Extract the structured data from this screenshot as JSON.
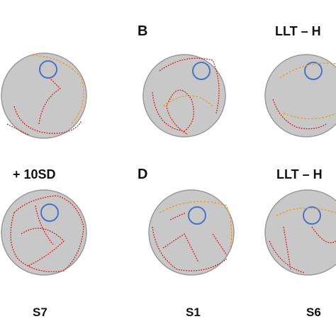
{
  "panels": [
    {
      "letter": "B",
      "label": "LLT – H"
    },
    {
      "label": "+ 10SD"
    },
    {
      "letter": "D",
      "label": "LLT – H"
    }
  ],
  "subjects": [
    "S7",
    "S1",
    "S6"
  ]
}
